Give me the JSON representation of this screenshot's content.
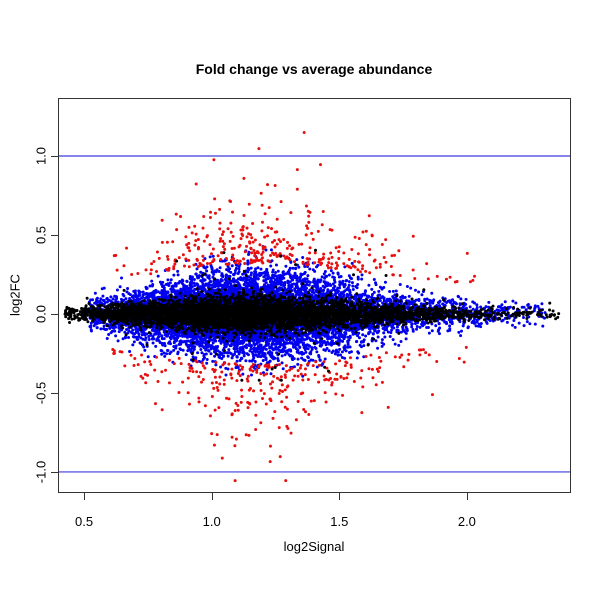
{
  "chart_data": {
    "type": "scatter",
    "title": "Fold change vs average abundance",
    "xlabel": "log2Signal",
    "ylabel": "log2FC",
    "xlim": [
      0.398,
      2.404
    ],
    "ylim": [
      -1.127,
      1.367
    ],
    "grid": false,
    "legend": null,
    "frame_color": "#333333",
    "background_color": "#ffffff",
    "point_radius": 1.5,
    "seed": 20240711,
    "x_ticks": [
      {
        "v": 0.5,
        "label": "0.5"
      },
      {
        "v": 1.0,
        "label": "1.0"
      },
      {
        "v": 1.5,
        "label": "1.5"
      },
      {
        "v": 2.0,
        "label": "2.0"
      }
    ],
    "y_ticks": [
      {
        "v": -1.0,
        "label": "-1.0"
      },
      {
        "v": -0.5,
        "label": "-0.5"
      },
      {
        "v": 0.0,
        "label": "0.0"
      },
      {
        "v": 0.5,
        "label": "0.5"
      },
      {
        "v": 1.0,
        "label": "1.0"
      }
    ],
    "hlines": [
      {
        "y": 1.0,
        "color": "#3b3bdd",
        "width": 1.2
      },
      {
        "y": -1.0,
        "color": "#3b3bdd",
        "width": 1.2
      }
    ],
    "spread_profile": {
      "center": 1.2,
      "width": 0.38
    },
    "series": [
      {
        "name": "blue-points",
        "color": "#0000ee",
        "count": 8500,
        "order": 1,
        "kind": "band",
        "x": {
          "mix": [
            {
              "mean": 1.1,
              "sd": 0.28,
              "w": 0.75
            },
            {
              "mean": 1.45,
              "sd": 0.42,
              "w": 0.25
            }
          ],
          "min": 0.52,
          "max": 2.31
        },
        "y": {
          "s0": 0.035,
          "s1": 0.105,
          "c0": 0.13,
          "c1": 0.3
        }
      },
      {
        "name": "red-points",
        "color": "#e8100f",
        "count": 620,
        "order": 2,
        "kind": "fringe",
        "x": {
          "mix": [
            {
              "mean": 1.15,
              "sd": 0.25,
              "w": 0.75
            },
            {
              "mean": 1.5,
              "sd": 0.35,
              "w": 0.25
            }
          ],
          "min": 0.58,
          "max": 2.08
        },
        "y": {
          "b0": 0.18,
          "b1": 0.14,
          "tail": 0.155,
          "a0": 0.42,
          "a1": 0.58,
          "pos_frac": 0.53,
          "pos_knee": 0.95,
          "pos_soft": 0.7,
          "pos_max": 1.285,
          "neg_knee": 0.9,
          "neg_soft": 0.35,
          "neg_min": -1.055
        }
      },
      {
        "name": "black-points",
        "color": "#000000",
        "count": 5200,
        "order": 3,
        "kind": "core",
        "x": {
          "mix": [
            {
              "mean": 1.05,
              "sd": 0.3,
              "w": 0.75
            },
            {
              "mean": 1.5,
              "sd": 0.45,
              "w": 0.25
            }
          ],
          "min": 0.425,
          "max": 2.36
        },
        "y": {
          "s0": 0.016,
          "s1": 0.04,
          "outlier_frac": 0.012,
          "outlier_mult": 4.5,
          "ymax": 0.42
        }
      }
    ]
  }
}
